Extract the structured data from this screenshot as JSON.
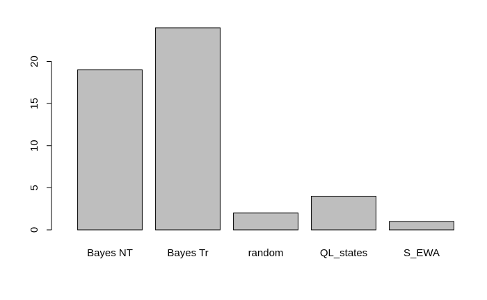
{
  "chart_data": {
    "type": "bar",
    "categories": [
      "Bayes NT",
      "Bayes Tr",
      "random",
      "QL_states",
      "S_EWA"
    ],
    "values": [
      19,
      24,
      2,
      4,
      1
    ],
    "ylim": [
      0,
      24
    ],
    "yticks": [
      0,
      5,
      10,
      15,
      20
    ],
    "bar_color": "#bebebe",
    "border_color": "#000000",
    "title": "",
    "xlabel": "",
    "ylabel": "",
    "grid": false
  }
}
